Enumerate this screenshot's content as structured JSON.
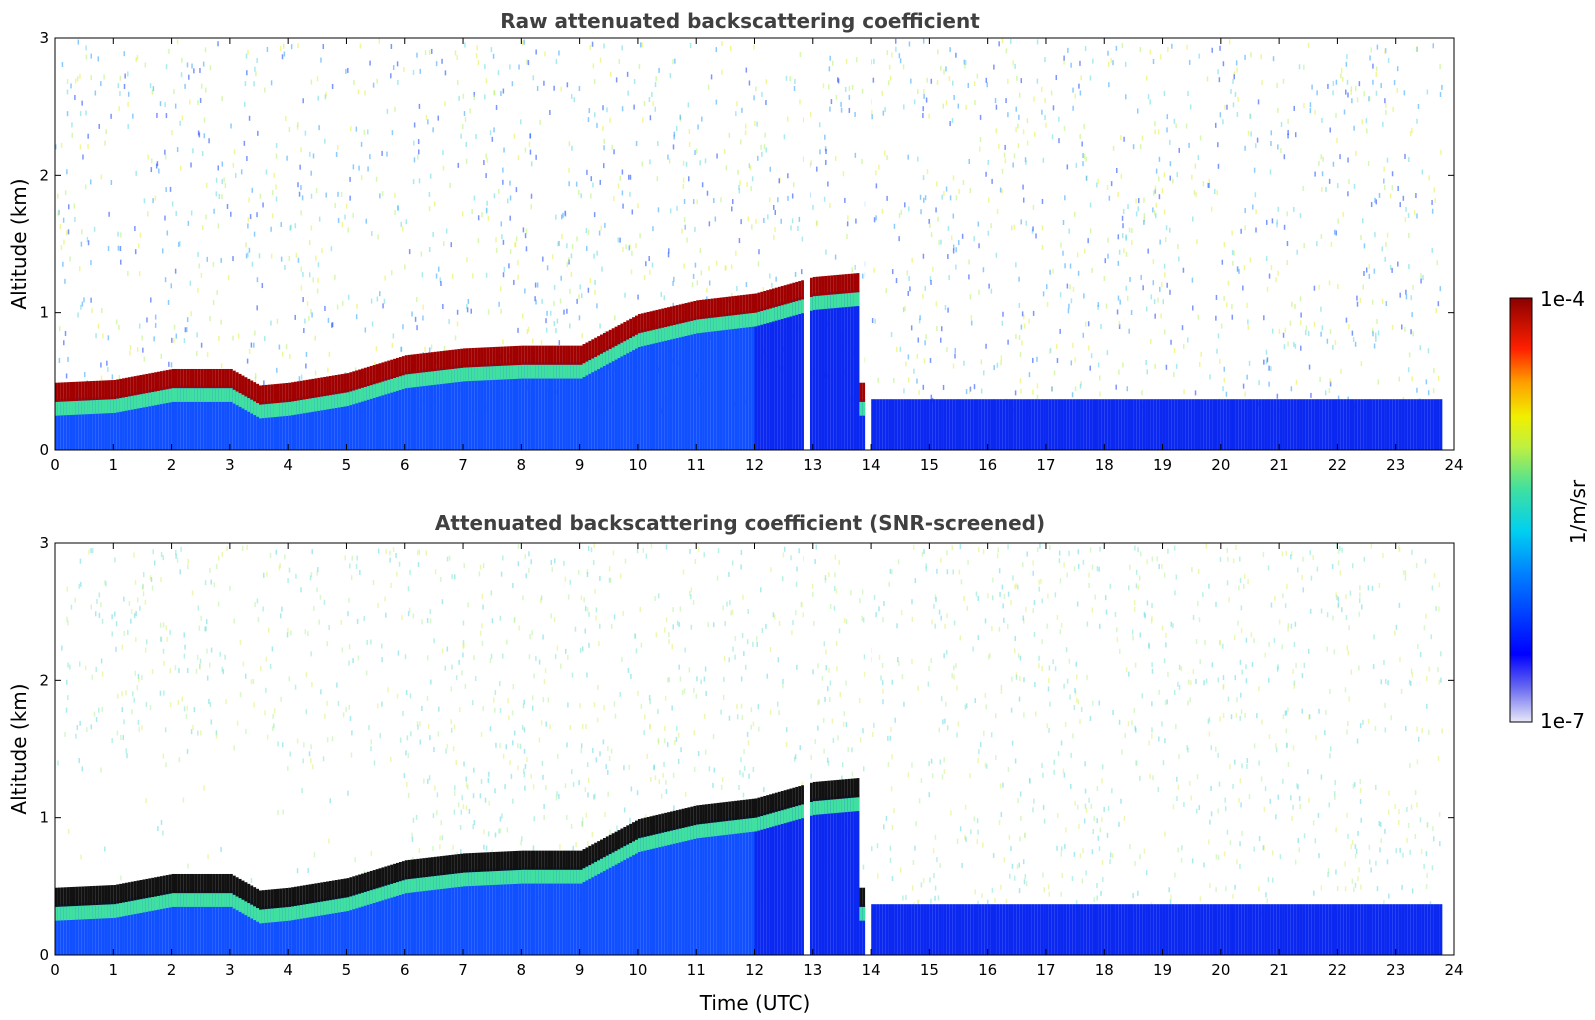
{
  "chart_data": [
    {
      "type": "heatmap",
      "title": "Raw attenuated backscattering coefficient",
      "xlabel": "",
      "ylabel": "Altitude (km)",
      "xlim": [
        0,
        24
      ],
      "ylim": [
        0,
        3
      ],
      "x_ticks": [
        "0",
        "1",
        "2",
        "3",
        "4",
        "5",
        "6",
        "7",
        "8",
        "9",
        "10",
        "11",
        "12",
        "13",
        "14",
        "15",
        "16",
        "17",
        "18",
        "19",
        "20",
        "21",
        "22",
        "23",
        "24"
      ],
      "y_ticks": [
        "0",
        "1",
        "2",
        "3"
      ],
      "layer_top_km": {
        "x": [
          0,
          1,
          2,
          3,
          3.5,
          4,
          5,
          6,
          7,
          8,
          9,
          10,
          11,
          12,
          13,
          13.8
        ],
        "y": [
          0.45,
          0.47,
          0.55,
          0.55,
          0.43,
          0.45,
          0.52,
          0.65,
          0.7,
          0.72,
          0.72,
          0.95,
          1.05,
          1.1,
          1.22,
          1.25
        ]
      },
      "data_gaps_utc": [
        12.9,
        13.95
      ]
    },
    {
      "type": "heatmap",
      "title": "Attenuated backscattering coefficient (SNR-screened)",
      "xlabel": "Time (UTC)",
      "ylabel": "Altitude (km)",
      "xlim": [
        0,
        24
      ],
      "ylim": [
        0,
        3
      ],
      "x_ticks": [
        "0",
        "1",
        "2",
        "3",
        "4",
        "5",
        "6",
        "7",
        "8",
        "9",
        "10",
        "11",
        "12",
        "13",
        "14",
        "15",
        "16",
        "17",
        "18",
        "19",
        "20",
        "21",
        "22",
        "23",
        "24"
      ],
      "y_ticks": [
        "0",
        "1",
        "2",
        "3"
      ],
      "layer_top_km": {
        "x": [
          0,
          1,
          2,
          3,
          3.5,
          4,
          5,
          6,
          7,
          8,
          9,
          10,
          11,
          12,
          13,
          13.8
        ],
        "y": [
          0.45,
          0.47,
          0.55,
          0.55,
          0.43,
          0.45,
          0.52,
          0.65,
          0.7,
          0.72,
          0.72,
          0.95,
          1.05,
          1.1,
          1.22,
          1.25
        ]
      },
      "data_gaps_utc": [
        12.9,
        13.95
      ]
    }
  ],
  "colorbar": {
    "max_label": "1e-4",
    "min_label": "1e-7",
    "unit_label": "1/m/sr",
    "scale": "log",
    "colormap": [
      "#e8e8f8",
      "#0000ff",
      "#00c8ff",
      "#40e0a0",
      "#f0f000",
      "#ff8000",
      "#ff0000",
      "#8b0000"
    ]
  }
}
